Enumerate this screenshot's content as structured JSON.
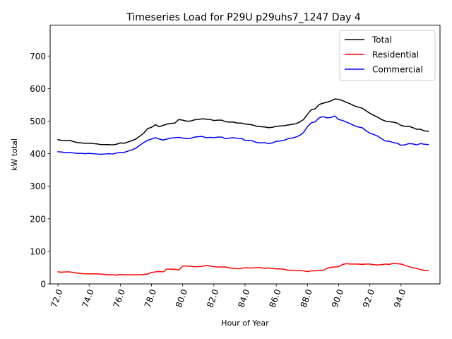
{
  "chart_data": {
    "type": "line",
    "title": "Timeseries Load for P29U p29uhs7_1247  Day 4",
    "xlabel": "Hour of Year",
    "ylabel": "kW total",
    "xlim": [
      71.5,
      96.5
    ],
    "ylim": [
      0,
      795
    ],
    "xticks": [
      72,
      74,
      76,
      78,
      80,
      82,
      84,
      86,
      88,
      90,
      92,
      94
    ],
    "xtick_labels": [
      "72.0",
      "74.0",
      "76.0",
      "78.0",
      "80.0",
      "82.0",
      "84.0",
      "86.0",
      "88.0",
      "90.0",
      "92.0",
      "94.0"
    ],
    "yticks": [
      0,
      100,
      200,
      300,
      400,
      500,
      600,
      700
    ],
    "ytick_labels": [
      "0",
      "100",
      "200",
      "300",
      "400",
      "500",
      "600",
      "700"
    ],
    "legend_position": "top-right",
    "x": [
      72.0,
      72.25,
      72.5,
      72.75,
      73.0,
      73.25,
      73.5,
      73.75,
      74.0,
      74.25,
      74.5,
      74.75,
      75.0,
      75.25,
      75.5,
      75.75,
      76.0,
      76.25,
      76.5,
      76.75,
      77.0,
      77.25,
      77.5,
      77.75,
      78.0,
      78.25,
      78.5,
      78.75,
      79.0,
      79.25,
      79.5,
      79.75,
      80.0,
      80.25,
      80.5,
      80.75,
      81.0,
      81.25,
      81.5,
      81.75,
      82.0,
      82.25,
      82.5,
      82.75,
      83.0,
      83.25,
      83.5,
      83.75,
      84.0,
      84.25,
      84.5,
      84.75,
      85.0,
      85.25,
      85.5,
      85.75,
      86.0,
      86.25,
      86.5,
      86.75,
      87.0,
      87.25,
      87.5,
      87.75,
      88.0,
      88.25,
      88.5,
      88.75,
      89.0,
      89.25,
      89.5,
      89.75,
      90.0,
      90.25,
      90.5,
      90.75,
      91.0,
      91.25,
      91.5,
      91.75,
      92.0,
      92.25,
      92.5,
      92.75,
      93.0,
      93.25,
      93.5,
      93.75,
      94.0,
      94.25,
      94.5,
      94.75,
      95.0,
      95.25,
      95.5,
      95.75
    ],
    "series": [
      {
        "name": "Total",
        "color": "#000000",
        "values": [
          443,
          441,
          440,
          441,
          437,
          434,
          433,
          432,
          432,
          431,
          430,
          428,
          428,
          428,
          427,
          429,
          433,
          432,
          436,
          440,
          445,
          454,
          463,
          477,
          481,
          489,
          483,
          487,
          491,
          493,
          494,
          505,
          503,
          500,
          500,
          504,
          505,
          507,
          506,
          505,
          502,
          503,
          503,
          498,
          497,
          497,
          494,
          494,
          491,
          490,
          488,
          484,
          483,
          482,
          480,
          481,
          484,
          485,
          486,
          488,
          490,
          492,
          497,
          505,
          521,
          535,
          538,
          551,
          555,
          558,
          562,
          568,
          567,
          563,
          558,
          553,
          547,
          543,
          540,
          532,
          524,
          518,
          512,
          505,
          500,
          498,
          497,
          494,
          487,
          484,
          484,
          480,
          475,
          475,
          470,
          469
        ]
      },
      {
        "name": "Residential",
        "color": "#ff0000",
        "values": [
          37,
          36,
          37,
          37,
          35,
          33,
          32,
          31,
          31,
          31,
          31,
          30,
          29,
          28,
          28,
          27,
          29,
          28,
          28,
          28,
          28,
          28,
          29,
          30,
          35,
          37,
          38,
          37,
          46,
          45,
          45,
          43,
          55,
          55,
          54,
          53,
          53,
          54,
          57,
          55,
          53,
          52,
          52,
          52,
          49,
          48,
          47,
          47,
          50,
          49,
          49,
          50,
          50,
          48,
          49,
          48,
          46,
          46,
          45,
          42,
          42,
          41,
          41,
          40,
          38,
          40,
          40,
          41,
          41,
          48,
          51,
          52,
          53,
          60,
          62,
          61,
          61,
          61,
          60,
          61,
          61,
          59,
          58,
          59,
          61,
          60,
          63,
          62,
          61,
          57,
          53,
          50,
          48,
          44,
          41,
          41
        ]
      },
      {
        "name": "Commercial",
        "color": "#0000ff",
        "values": [
          406,
          405,
          403,
          404,
          402,
          401,
          401,
          400,
          401,
          400,
          399,
          398,
          399,
          400,
          399,
          402,
          404,
          404,
          408,
          412,
          417,
          426,
          434,
          441,
          445,
          449,
          445,
          442,
          445,
          448,
          449,
          450,
          448,
          446,
          447,
          451,
          452,
          453,
          449,
          450,
          449,
          451,
          451,
          446,
          448,
          449,
          447,
          447,
          441,
          441,
          439,
          434,
          433,
          434,
          431,
          433,
          438,
          439,
          441,
          446,
          448,
          451,
          456,
          465,
          483,
          495,
          498,
          510,
          514,
          510,
          511,
          516,
          505,
          502,
          497,
          492,
          486,
          482,
          480,
          471,
          463,
          459,
          454,
          446,
          439,
          438,
          434,
          432,
          426,
          427,
          431,
          430,
          427,
          431,
          429,
          428
        ]
      }
    ]
  }
}
